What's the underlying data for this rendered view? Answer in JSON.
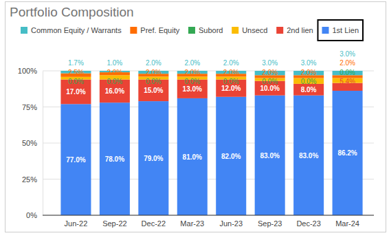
{
  "chart_data": {
    "type": "bar",
    "title": "Portfolio Composition",
    "stacked": true,
    "legend": "top",
    "grid": true,
    "data_labels": true,
    "categories": [
      "Jun-22",
      "Sep-22",
      "Dec-22",
      "Mar-23",
      "Jun-23",
      "Sep-23",
      "Dec-23",
      "Mar-24"
    ],
    "ylim": [
      0,
      100
    ],
    "yticks": [
      {
        "value": 0,
        "label": "0%"
      },
      {
        "value": 25,
        "label": "25%"
      },
      {
        "value": 50,
        "label": "50%"
      },
      {
        "value": 75,
        "label": "75%"
      },
      {
        "value": 100,
        "label": "100%"
      }
    ],
    "series": [
      {
        "name": "Common Equity / Warrants",
        "color": "#46bdc6",
        "values": [
          1.7,
          1.0,
          2.0,
          2.0,
          2.0,
          3.0,
          3.0,
          3.0
        ],
        "value_labels": [
          "1.7%",
          "1.0%",
          "2.0%",
          "2.0%",
          "2.0%",
          "3.0%",
          "3.0%",
          "3.0%"
        ]
      },
      {
        "name": "Pref. Equity",
        "color": "#ff6d01",
        "values": [
          2.5,
          2.0,
          2.0,
          2.0,
          2.0,
          2.0,
          2.0,
          2.0
        ],
        "value_labels": [
          "2.5%",
          "2.0%",
          "2.0%",
          "2.0%",
          "2.0%",
          "2.0%",
          "2.0%",
          "2.0%"
        ]
      },
      {
        "name": "Subord",
        "color": "#34a853",
        "values": [
          0.0,
          0.0,
          0.0,
          0.0,
          0.0,
          0.0,
          0.0,
          0.0
        ],
        "value_labels": [
          "0.0%",
          "0.0%",
          "0.0%",
          "0.0%",
          "0.0%",
          "0.0%",
          "0.0%",
          "0.0%"
        ]
      },
      {
        "name": "Unsecd",
        "color": "#fbbc04",
        "data_labels": false,
        "values": [
          1.8,
          3.0,
          2.0,
          2.0,
          2.0,
          2.0,
          4.0,
          3.4
        ]
      },
      {
        "name": "2nd lien",
        "color": "#ea4335",
        "values": [
          17.0,
          16.0,
          15.0,
          13.0,
          12.0,
          10.0,
          8.0,
          5.4
        ],
        "value_labels": [
          "17.0%",
          "16.0%",
          "15.0%",
          "13.0%",
          "12.0%",
          "10.0%",
          "8.0%",
          "5.4%"
        ]
      },
      {
        "name": "1st Lien",
        "color": "#4285f4",
        "values": [
          77.0,
          78.0,
          79.0,
          81.0,
          82.0,
          83.0,
          83.0,
          86.2
        ],
        "value_labels": [
          "77.0%",
          "78.0%",
          "79.0%",
          "81.0%",
          "82.0%",
          "83.0%",
          "83.0%",
          "86.2%"
        ]
      }
    ]
  }
}
